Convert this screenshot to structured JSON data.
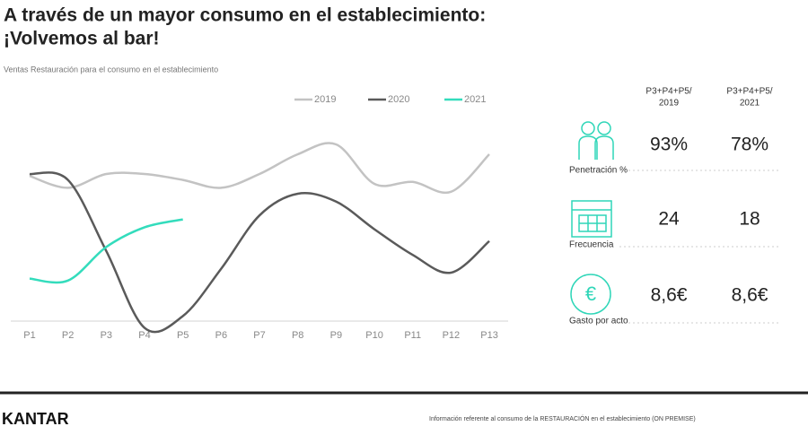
{
  "header": {
    "title_lines": [
      "A través de un mayor consumo en el establecimiento:",
      "¡Volvemos al bar!"
    ],
    "subtitle": "Ventas Restauración para el consumo en el establecimiento"
  },
  "chart_data": {
    "type": "line",
    "categories": [
      "P1",
      "P2",
      "P3",
      "P4",
      "P5",
      "P6",
      "P7",
      "P8",
      "P9",
      "P10",
      "P11",
      "P12",
      "P13"
    ],
    "ylim": [
      0,
      100
    ],
    "series": [
      {
        "name": "2019",
        "color": "#c3c3c3",
        "values": [
          79,
          73,
          80,
          80,
          77,
          73,
          80,
          90,
          95,
          75,
          76,
          71,
          90
        ]
      },
      {
        "name": "2020",
        "color": "#5a5a5a",
        "values": [
          80,
          77,
          41,
          2,
          8,
          32,
          59,
          70,
          66,
          52,
          39,
          30,
          46
        ]
      },
      {
        "name": "2021",
        "color": "#33dcbc",
        "values": [
          27,
          26,
          43,
          53,
          57,
          null,
          null,
          null,
          null,
          null,
          null,
          null,
          null
        ]
      }
    ]
  },
  "table": {
    "columns": [
      [
        "P3+P4+P5/",
        "2019"
      ],
      [
        "P3+P4+P5/",
        "2021"
      ]
    ],
    "rows": [
      {
        "label": "Penetración %",
        "values": [
          "93%",
          "78%"
        ]
      },
      {
        "label": "Frecuencia",
        "values": [
          "24",
          "18"
        ]
      },
      {
        "label": "Gasto por acto",
        "values": [
          "8,6€",
          "8,6€"
        ]
      }
    ]
  },
  "footer": {
    "logo": "KANTAR",
    "note": "Información referente al consumo de la RESTAURACIÓN en el establecimiento (ON PREMISE)"
  }
}
